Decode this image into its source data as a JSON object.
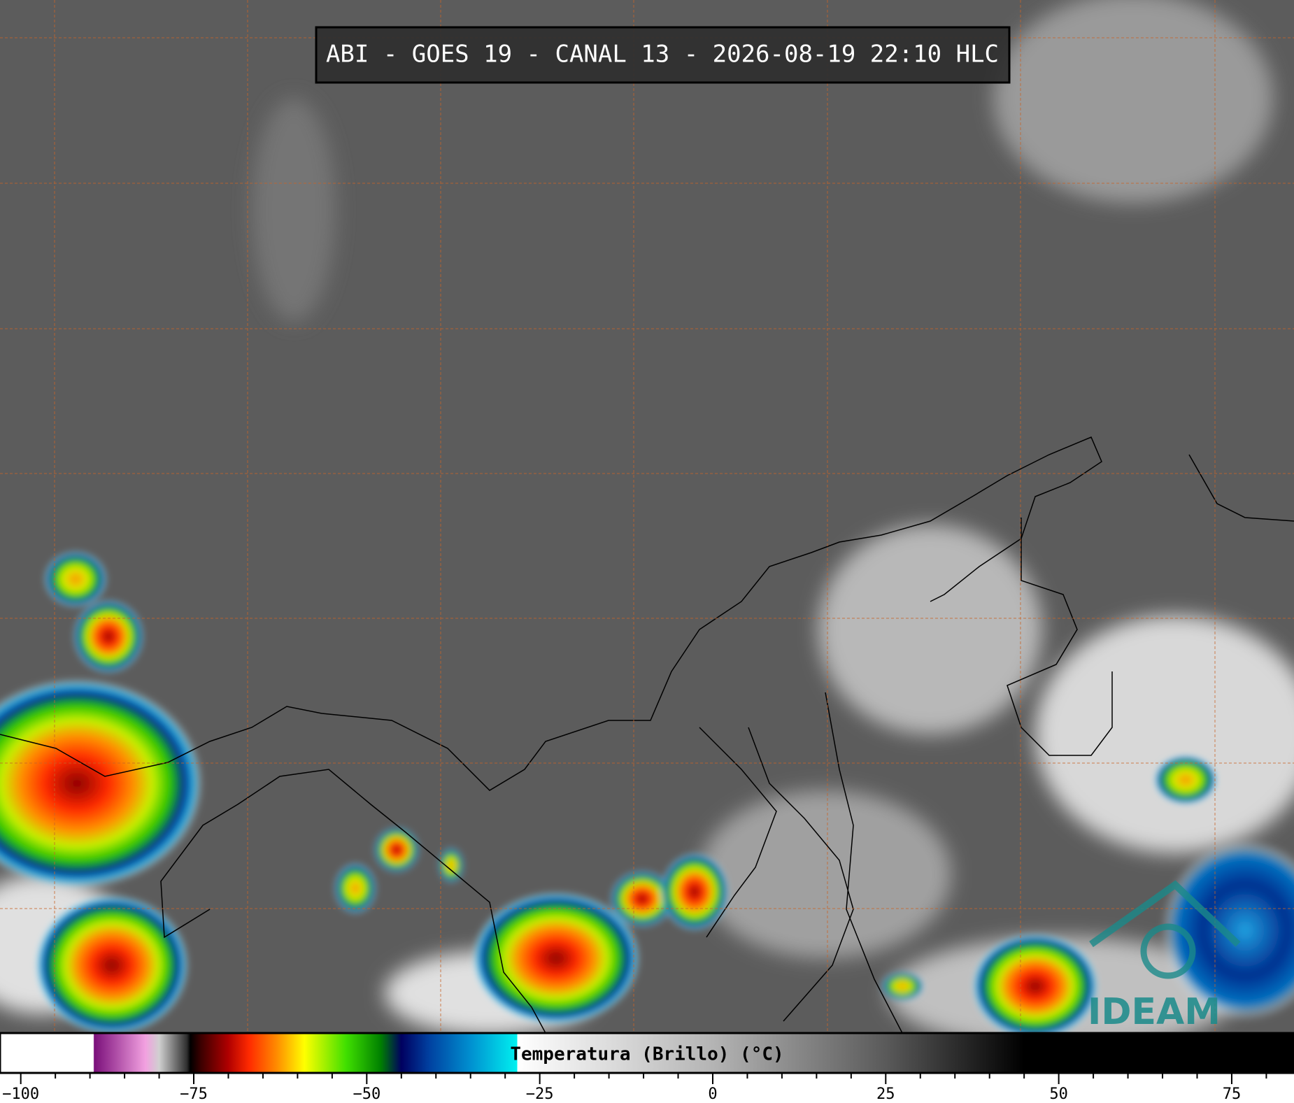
{
  "title": "ABI - GOES 19 - CANAL 13 - 2026-08-19 22:10 HLC",
  "logo": "IDEAM",
  "colorbar": {
    "label": "Temperatura (Brillo) (°C)",
    "lim": [
      -103,
      84
    ],
    "ticks": [
      {
        "value": -100,
        "label": "−100"
      },
      {
        "value": -75,
        "label": "−75"
      },
      {
        "value": -50,
        "label": "−50"
      },
      {
        "value": -25,
        "label": "−25"
      },
      0,
      25,
      50,
      75
    ],
    "minor_ticks": [
      -95,
      -90,
      -85,
      -80,
      -70,
      -65,
      -60,
      -55,
      -45,
      -40,
      -35,
      -30,
      -20,
      -15,
      -10,
      -5,
      5,
      10,
      15,
      20,
      30,
      35,
      40,
      45,
      55,
      60,
      65,
      70,
      80
    ],
    "colorscale": [
      [
        -103,
        "#ffffff"
      ],
      [
        -89.5,
        "#ffffff"
      ],
      [
        -89.4,
        "#7a0f7a"
      ],
      [
        -82,
        "#f2a0e0"
      ],
      [
        -80,
        "#d0d0d0"
      ],
      [
        -76,
        "#303030"
      ],
      [
        -75.5,
        "#000000"
      ],
      [
        -74,
        "#3a0000"
      ],
      [
        -70,
        "#b00000"
      ],
      [
        -67,
        "#ff2a00"
      ],
      [
        -63,
        "#ff8c00"
      ],
      [
        -59,
        "#ffff00"
      ],
      [
        -53,
        "#40e000"
      ],
      [
        -48,
        "#008000"
      ],
      [
        -45,
        "#000060"
      ],
      [
        -41,
        "#0040a0"
      ],
      [
        -35,
        "#0090d0"
      ],
      [
        -28.3,
        "#00f0f0"
      ],
      [
        -28.2,
        "#ffffff"
      ],
      [
        0,
        "#b4b4b4"
      ],
      [
        25,
        "#5a5a5a"
      ],
      [
        45,
        "#000000"
      ],
      [
        84,
        "#000000"
      ]
    ]
  }
}
